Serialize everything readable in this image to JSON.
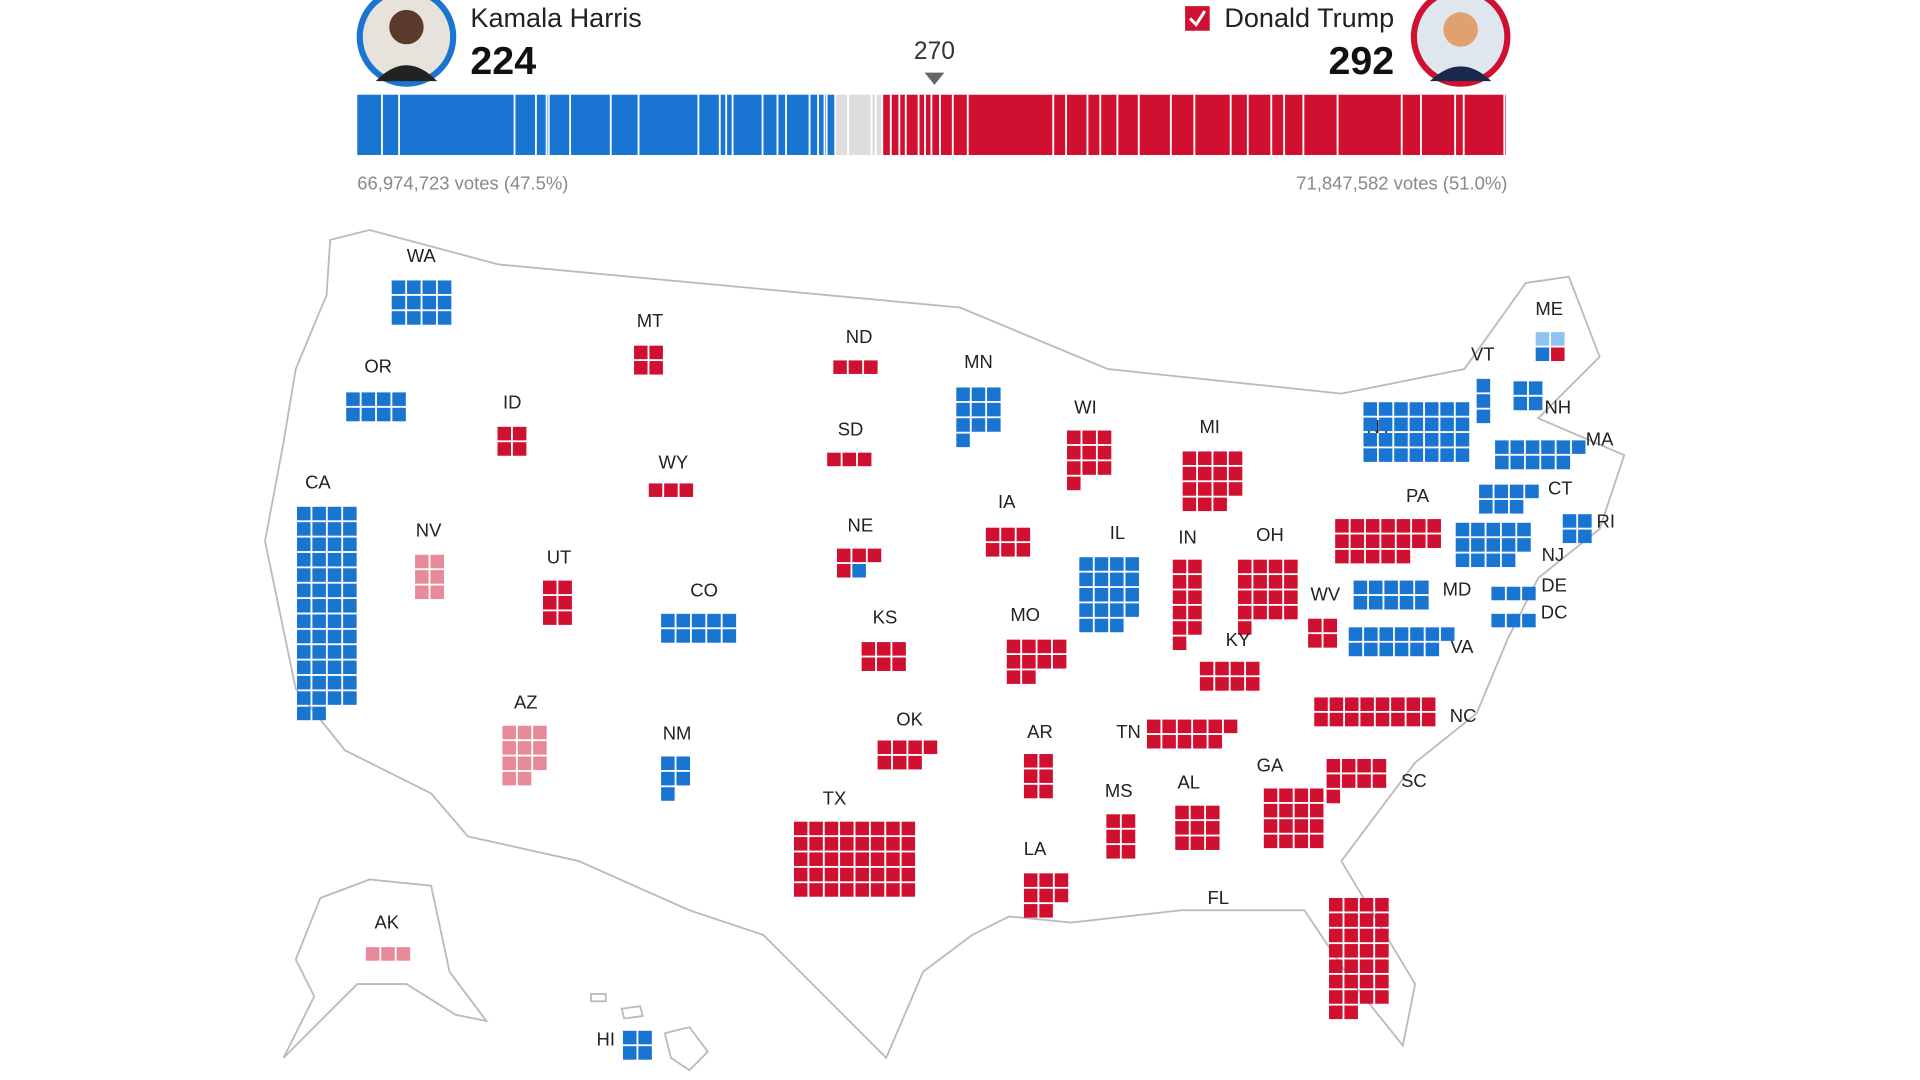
{
  "candidates": [
    {
      "name": "Kamala Harris",
      "electoral_votes": 224,
      "votes_label": "66,974,723 votes (47.5%)",
      "color": "#1a75d2",
      "winner": false
    },
    {
      "name": "Donald Trump",
      "electoral_votes": 292,
      "votes_label": "71,847,582 votes (51.0%)",
      "color": "#cf1030",
      "winner": true
    }
  ],
  "threshold": {
    "value": 270,
    "label": "270"
  },
  "uncalled_bar_color": "#dddddd",
  "states": [
    {
      "label": "WA",
      "segments": [
        {
          "count": 12,
          "color": "#1a75d2",
          "called": true
        }
      ]
    },
    {
      "label": "OR",
      "segments": [
        {
          "count": 8,
          "color": "#1a75d2",
          "called": true
        }
      ]
    },
    {
      "label": "CA",
      "segments": [
        {
          "count": 54,
          "color": "#1a75d2",
          "called": true
        }
      ]
    },
    {
      "label": "NV",
      "segments": [
        {
          "count": 6,
          "color": "#e88a9a",
          "called": false
        }
      ]
    },
    {
      "label": "ID",
      "segments": [
        {
          "count": 4,
          "color": "#cf1030",
          "called": true
        }
      ]
    },
    {
      "label": "MT",
      "segments": [
        {
          "count": 4,
          "color": "#cf1030",
          "called": true
        }
      ]
    },
    {
      "label": "WY",
      "segments": [
        {
          "count": 3,
          "color": "#cf1030",
          "called": true
        }
      ]
    },
    {
      "label": "UT",
      "segments": [
        {
          "count": 6,
          "color": "#cf1030",
          "called": true
        }
      ]
    },
    {
      "label": "CO",
      "segments": [
        {
          "count": 10,
          "color": "#1a75d2",
          "called": true
        }
      ]
    },
    {
      "label": "AZ",
      "segments": [
        {
          "count": 11,
          "color": "#e88a9a",
          "called": false
        }
      ]
    },
    {
      "label": "NM",
      "segments": [
        {
          "count": 5,
          "color": "#1a75d2",
          "called": true
        }
      ]
    },
    {
      "label": "ND",
      "segments": [
        {
          "count": 3,
          "color": "#cf1030",
          "called": true
        }
      ]
    },
    {
      "label": "SD",
      "segments": [
        {
          "count": 3,
          "color": "#cf1030",
          "called": true
        }
      ]
    },
    {
      "label": "NE",
      "segments": [
        {
          "count": 4,
          "color": "#cf1030",
          "called": true
        },
        {
          "count": 1,
          "color": "#1a75d2",
          "called": true
        }
      ]
    },
    {
      "label": "KS",
      "segments": [
        {
          "count": 6,
          "color": "#cf1030",
          "called": true
        }
      ]
    },
    {
      "label": "OK",
      "segments": [
        {
          "count": 7,
          "color": "#cf1030",
          "called": true
        }
      ]
    },
    {
      "label": "TX",
      "segments": [
        {
          "count": 40,
          "color": "#cf1030",
          "called": true
        }
      ]
    },
    {
      "label": "MN",
      "segments": [
        {
          "count": 10,
          "color": "#1a75d2",
          "called": true
        }
      ]
    },
    {
      "label": "IA",
      "segments": [
        {
          "count": 6,
          "color": "#cf1030",
          "called": true
        }
      ]
    },
    {
      "label": "MO",
      "segments": [
        {
          "count": 10,
          "color": "#cf1030",
          "called": true
        }
      ]
    },
    {
      "label": "AR",
      "segments": [
        {
          "count": 6,
          "color": "#cf1030",
          "called": true
        }
      ]
    },
    {
      "label": "LA",
      "segments": [
        {
          "count": 8,
          "color": "#cf1030",
          "called": true
        }
      ]
    },
    {
      "label": "WI",
      "segments": [
        {
          "count": 10,
          "color": "#cf1030",
          "called": true
        }
      ]
    },
    {
      "label": "IL",
      "segments": [
        {
          "count": 19,
          "color": "#1a75d2",
          "called": true
        }
      ]
    },
    {
      "label": "MI",
      "segments": [
        {
          "count": 15,
          "color": "#cf1030",
          "called": true
        }
      ]
    },
    {
      "label": "IN",
      "segments": [
        {
          "count": 11,
          "color": "#cf1030",
          "called": true
        }
      ]
    },
    {
      "label": "OH",
      "segments": [
        {
          "count": 17,
          "color": "#cf1030",
          "called": true
        }
      ]
    },
    {
      "label": "KY",
      "segments": [
        {
          "count": 8,
          "color": "#cf1030",
          "called": true
        }
      ]
    },
    {
      "label": "TN",
      "segments": [
        {
          "count": 11,
          "color": "#cf1030",
          "called": true
        }
      ]
    },
    {
      "label": "MS",
      "segments": [
        {
          "count": 6,
          "color": "#cf1030",
          "called": true
        }
      ]
    },
    {
      "label": "AL",
      "segments": [
        {
          "count": 9,
          "color": "#cf1030",
          "called": true
        }
      ]
    },
    {
      "label": "GA",
      "segments": [
        {
          "count": 16,
          "color": "#cf1030",
          "called": true
        }
      ]
    },
    {
      "label": "FL",
      "segments": [
        {
          "count": 30,
          "color": "#cf1030",
          "called": true
        }
      ]
    },
    {
      "label": "SC",
      "segments": [
        {
          "count": 9,
          "color": "#cf1030",
          "called": true
        }
      ]
    },
    {
      "label": "NC",
      "segments": [
        {
          "count": 16,
          "color": "#cf1030",
          "called": true
        }
      ]
    },
    {
      "label": "VA",
      "segments": [
        {
          "count": 13,
          "color": "#1a75d2",
          "called": true
        }
      ]
    },
    {
      "label": "WV",
      "segments": [
        {
          "count": 4,
          "color": "#cf1030",
          "called": true
        }
      ]
    },
    {
      "label": "PA",
      "segments": [
        {
          "count": 19,
          "color": "#cf1030",
          "called": true
        }
      ]
    },
    {
      "label": "NY",
      "segments": [
        {
          "count": 28,
          "color": "#1a75d2",
          "called": true
        }
      ]
    },
    {
      "label": "MD",
      "segments": [
        {
          "count": 10,
          "color": "#1a75d2",
          "called": true
        }
      ]
    },
    {
      "label": "DE",
      "segments": [
        {
          "count": 3,
          "color": "#1a75d2",
          "called": true
        }
      ]
    },
    {
      "label": "DC",
      "segments": [
        {
          "count": 3,
          "color": "#1a75d2",
          "called": true
        }
      ]
    },
    {
      "label": "NJ",
      "segments": [
        {
          "count": 14,
          "color": "#1a75d2",
          "called": true
        }
      ]
    },
    {
      "label": "CT",
      "segments": [
        {
          "count": 7,
          "color": "#1a75d2",
          "called": true
        }
      ]
    },
    {
      "label": "RI",
      "segments": [
        {
          "count": 4,
          "color": "#1a75d2",
          "called": true
        }
      ]
    },
    {
      "label": "MA",
      "segments": [
        {
          "count": 11,
          "color": "#1a75d2",
          "called": true
        }
      ]
    },
    {
      "label": "NH",
      "segments": [
        {
          "count": 4,
          "color": "#1a75d2",
          "called": true
        }
      ]
    },
    {
      "label": "VT",
      "segments": [
        {
          "count": 3,
          "color": "#1a75d2",
          "called": true
        }
      ]
    },
    {
      "label": "ME",
      "segments": [
        {
          "count": 2,
          "color": "#8fc3ef",
          "called": false
        },
        {
          "count": 1,
          "color": "#1a75d2",
          "called": true
        },
        {
          "count": 1,
          "color": "#cf1030",
          "called": true
        }
      ]
    },
    {
      "label": "AK",
      "segments": [
        {
          "count": 3,
          "color": "#e88a9a",
          "called": false
        }
      ]
    },
    {
      "label": "HI",
      "segments": [
        {
          "count": 4,
          "color": "#1a75d2",
          "called": true
        }
      ]
    }
  ]
}
